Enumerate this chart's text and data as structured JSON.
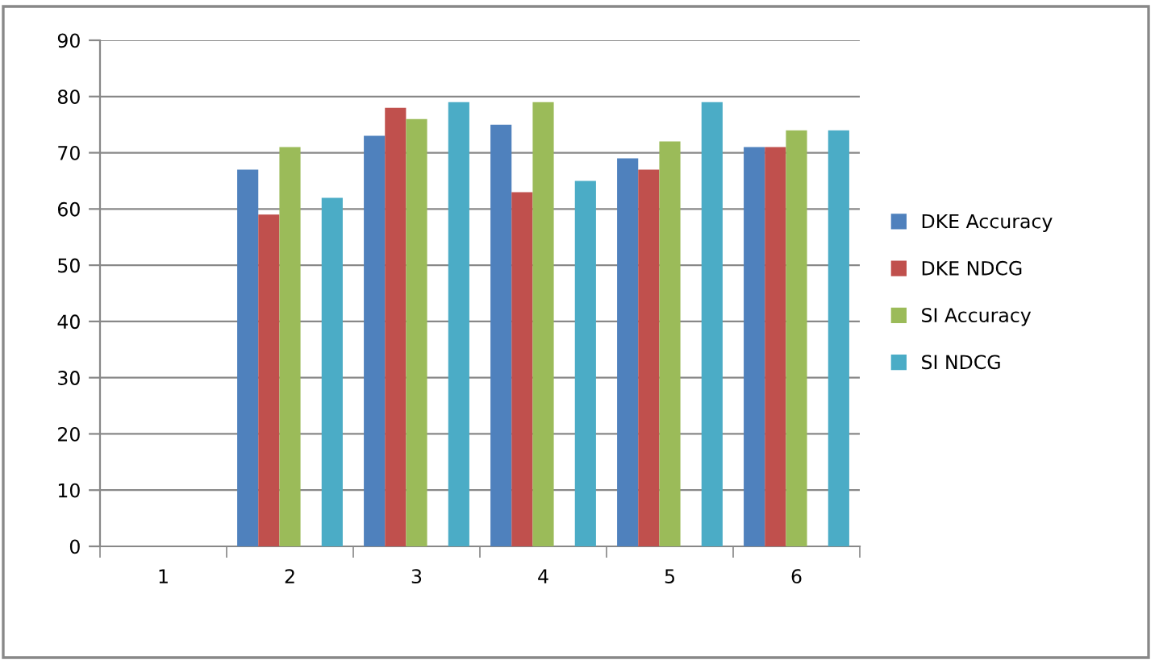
{
  "chart_data": {
    "type": "bar",
    "categories": [
      "1",
      "2",
      "3",
      "4",
      "5",
      "6"
    ],
    "series": [
      {
        "name": "DKE Accuracy",
        "color": "#4f81bd",
        "values": [
          null,
          67,
          73,
          75,
          69,
          71
        ]
      },
      {
        "name": "DKE NDCG",
        "color": "#c0504d",
        "values": [
          null,
          59,
          78,
          63,
          67,
          71
        ]
      },
      {
        "name": "SI Accuracy",
        "color": "#9bbb59",
        "values": [
          null,
          71,
          76,
          79,
          72,
          74
        ]
      },
      {
        "values": [
          null,
          null,
          null,
          null,
          null,
          null
        ]
      },
      {
        "name": "SI NDCG",
        "color": "#4bacc6",
        "values": [
          null,
          62,
          79,
          65,
          79,
          74
        ]
      }
    ],
    "ylim": [
      0,
      90
    ],
    "yticks": [
      0,
      10,
      20,
      30,
      40,
      50,
      60,
      70,
      80,
      90
    ],
    "grid": "y",
    "legend": "right"
  }
}
